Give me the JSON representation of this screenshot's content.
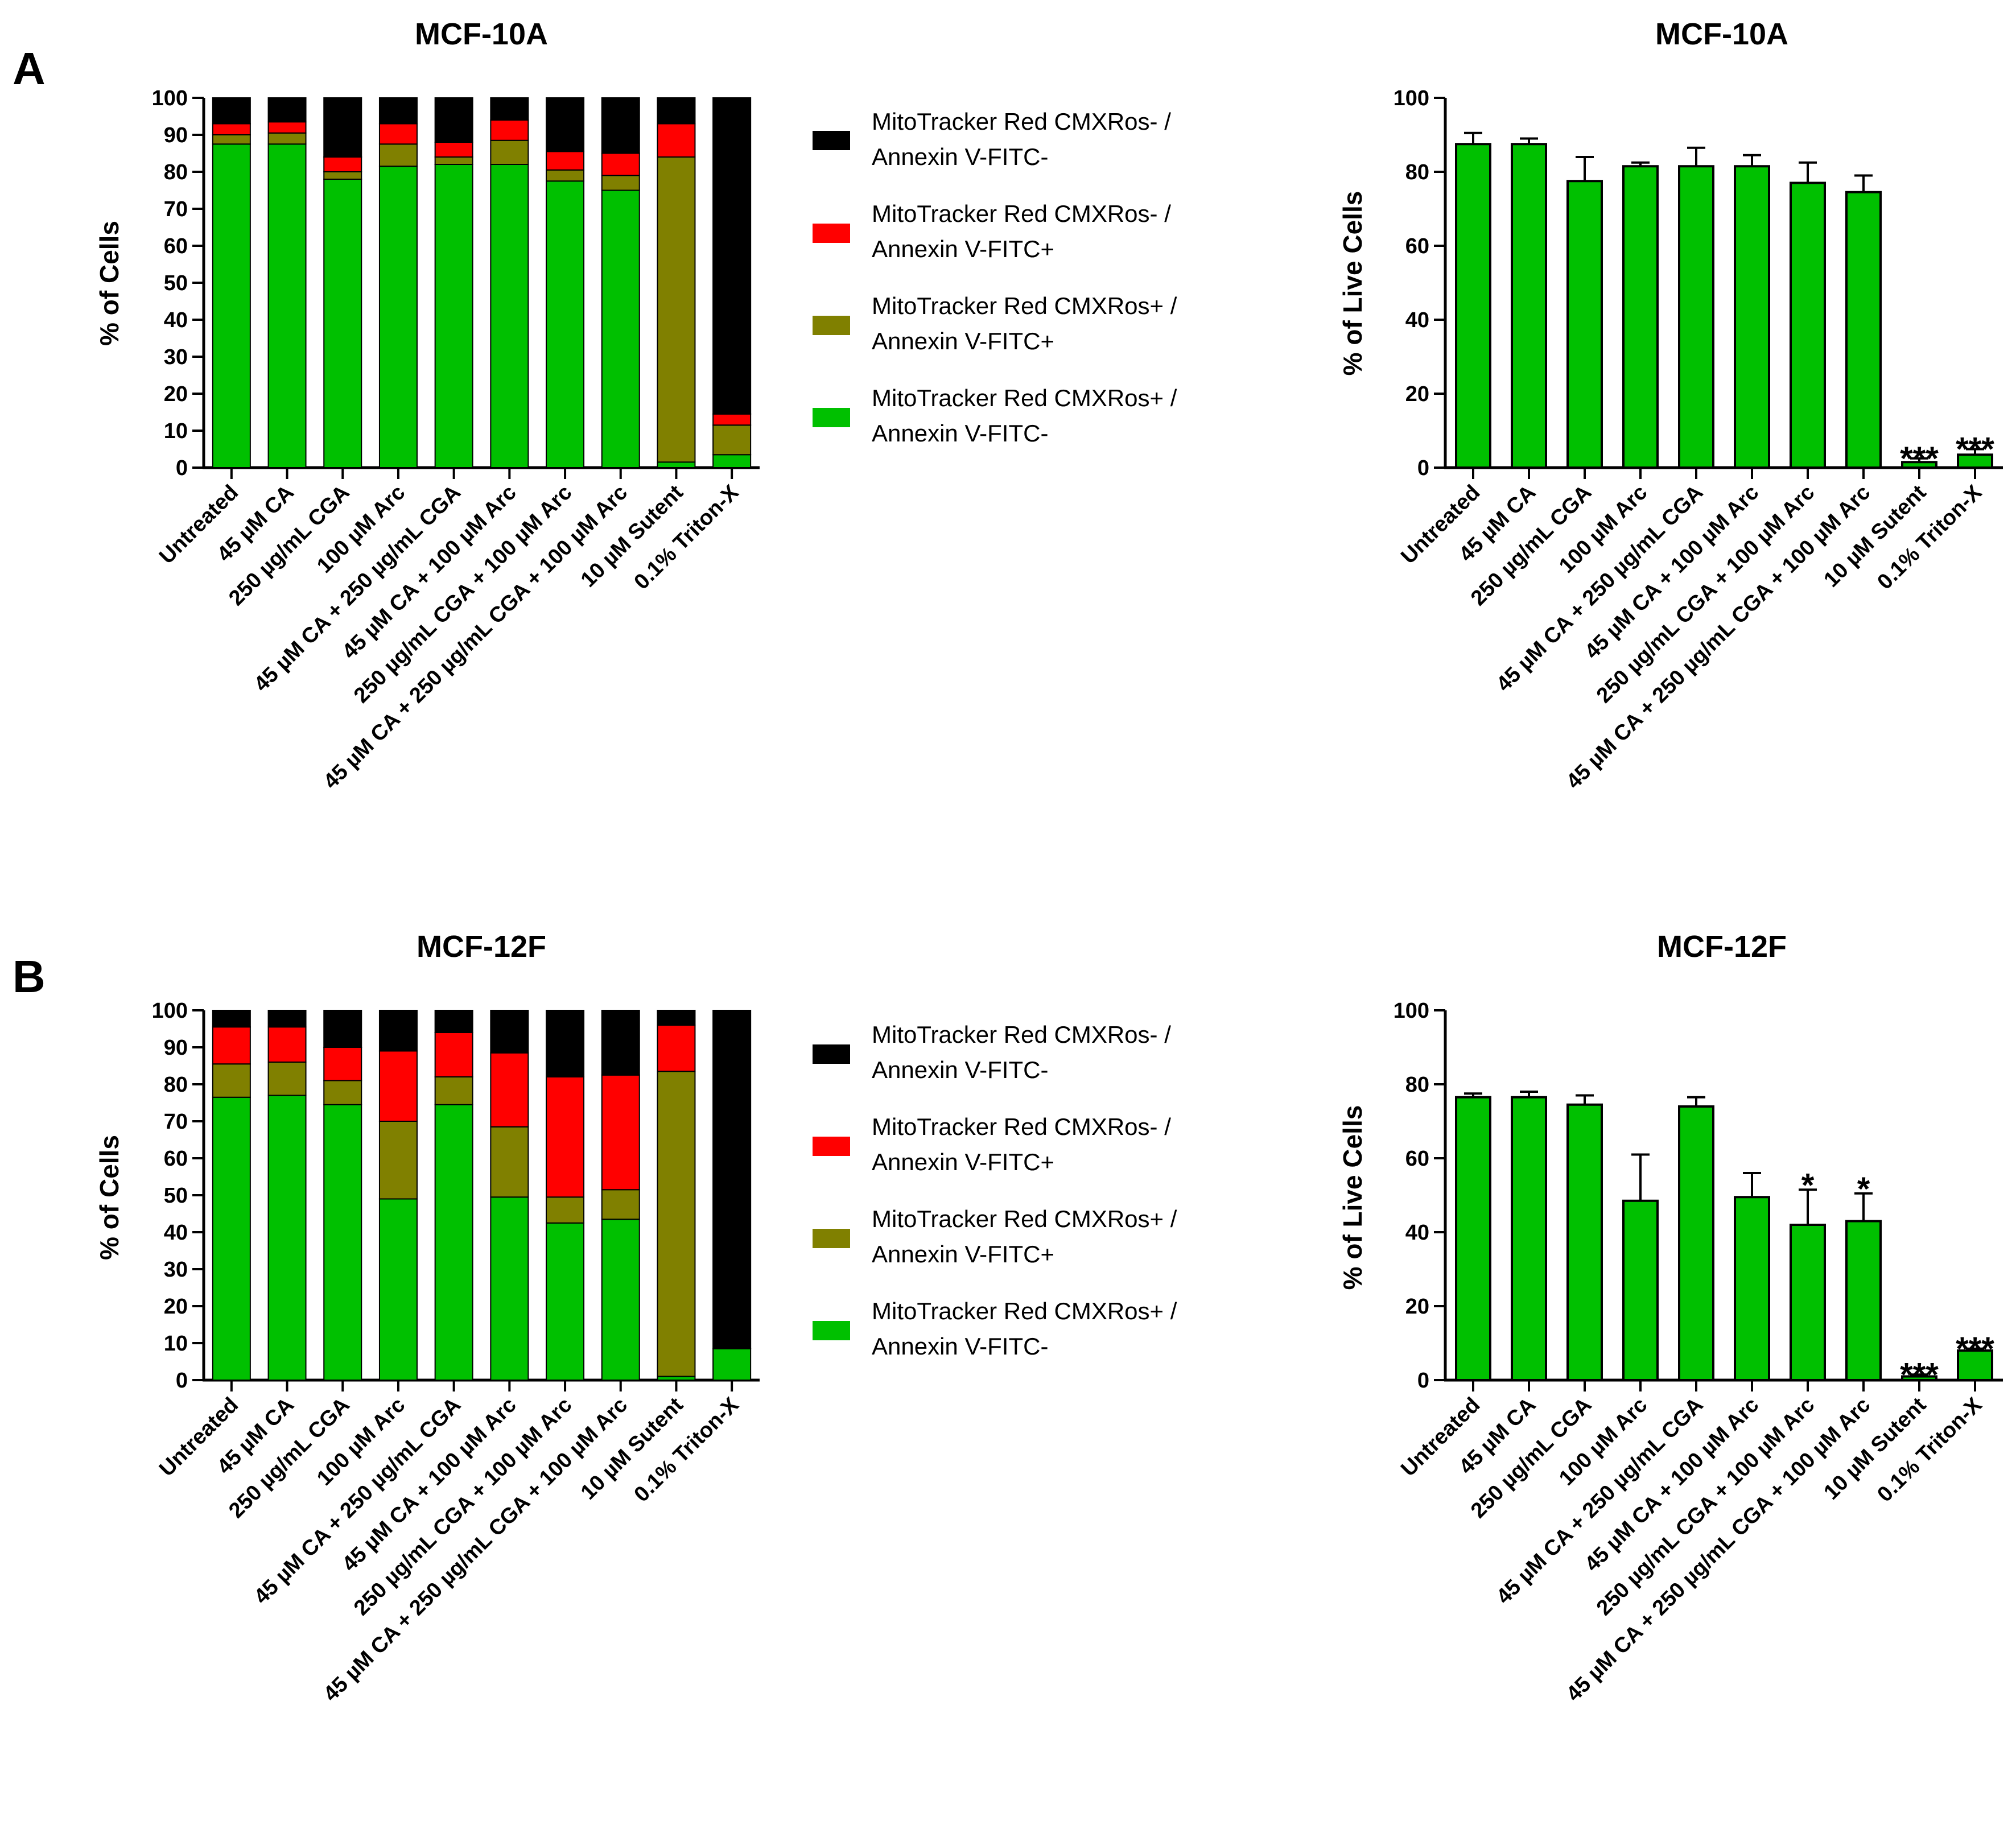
{
  "panel_labels": [
    "A",
    "B"
  ],
  "colors": {
    "live": "#00C000",
    "early_apoptotic": "#808000",
    "late": "#FF0000",
    "dead": "#000000"
  },
  "legend": [
    {
      "key": "dead",
      "line1": "MitoTracker Red CMXRos- /",
      "line2": "Annexin V-FITC-"
    },
    {
      "key": "late",
      "line1": "MitoTracker Red CMXRos- /",
      "line2": "Annexin V-FITC+"
    },
    {
      "key": "early_apoptotic",
      "line1": "MitoTracker Red CMXRos+ /",
      "line2": "Annexin V-FITC+"
    },
    {
      "key": "live",
      "line1": "MitoTracker Red CMXRos+ /",
      "line2": "Annexin V-FITC-"
    }
  ],
  "chart_data": [
    {
      "id": "A-stacked",
      "type": "bar",
      "stacked": true,
      "title": "MCF-10A",
      "ylabel": "% of Cells",
      "ylim": [
        0,
        100
      ],
      "yticks": [
        "0",
        "10",
        "20",
        "30",
        "40",
        "50",
        "60",
        "70",
        "80",
        "90",
        "100"
      ],
      "categories": [
        "Untreated",
        "45 µM CA",
        "250 µg/mL CGA",
        "100 µM Arc",
        "45 µM CA + 250 µg/mL CGA",
        "45 µM CA + 100 µM Arc",
        "250 µg/mL CGA + 100 µM Arc",
        "45 µM CA + 250 µg/mL CGA + 100 µM Arc",
        "10 µM Sutent",
        "0.1% Triton-X"
      ],
      "series": [
        {
          "key": "live",
          "name": "MitoTracker Red CMXRos+ / Annexin V-FITC-",
          "values": [
            87.5,
            87.5,
            78,
            81.5,
            82,
            82,
            77.5,
            75,
            1.5,
            3.5
          ]
        },
        {
          "key": "early_apoptotic",
          "name": "MitoTracker Red CMXRos+ / Annexin V-FITC+",
          "values": [
            2.5,
            3,
            2,
            6,
            2,
            6.5,
            3,
            4,
            82.5,
            8
          ]
        },
        {
          "key": "late",
          "name": "MitoTracker Red CMXRos- / Annexin V-FITC+",
          "values": [
            3,
            3,
            4,
            5.5,
            4,
            5.5,
            5,
            6,
            9,
            3
          ]
        },
        {
          "key": "dead",
          "name": "MitoTracker Red CMXRos- / Annexin V-FITC-",
          "values": [
            7,
            6.5,
            16,
            7,
            12,
            6,
            14.5,
            15,
            7,
            85.5
          ]
        }
      ]
    },
    {
      "id": "A-live",
      "type": "bar",
      "title": "MCF-10A",
      "ylabel": "% of Live Cells",
      "ylim": [
        0,
        100
      ],
      "yticks": [
        "0",
        "20",
        "40",
        "60",
        "80",
        "100"
      ],
      "categories": [
        "Untreated",
        "45 µM CA",
        "250 µg/mL CGA",
        "100 µM Arc",
        "45 µM CA + 250 µg/mL CGA",
        "45 µM CA + 100 µM Arc",
        "250 µg/mL CGA + 100 µM Arc",
        "45 µM CA + 250 µg/mL CGA + 100 µM Arc",
        "10 µM Sutent",
        "0.1% Triton-X"
      ],
      "values": [
        87.5,
        87.5,
        77.5,
        81.5,
        81.5,
        81.5,
        77,
        74.5,
        1.5,
        3.5
      ],
      "errors": [
        3,
        1.5,
        6.5,
        1,
        5,
        3,
        5.5,
        4.5,
        1,
        1.5
      ],
      "significance": [
        "",
        "",
        "",
        "",
        "",
        "",
        "",
        "",
        "***",
        "***"
      ]
    },
    {
      "id": "B-stacked",
      "type": "bar",
      "stacked": true,
      "title": "MCF-12F",
      "ylabel": "% of Cells",
      "ylim": [
        0,
        100
      ],
      "yticks": [
        "0",
        "10",
        "20",
        "30",
        "40",
        "50",
        "60",
        "70",
        "80",
        "90",
        "100"
      ],
      "categories": [
        "Untreated",
        "45 µM CA",
        "250 µg/mL CGA",
        "100 µM Arc",
        "45 µM CA + 250 µg/mL CGA",
        "45 µM CA + 100 µM Arc",
        "250 µg/mL CGA + 100 µM Arc",
        "45 µM CA + 250 µg/mL CGA + 100 µM Arc",
        "10 µM Sutent",
        "0.1% Triton-X"
      ],
      "series": [
        {
          "key": "live",
          "name": "MitoTracker Red CMXRos+ / Annexin V-FITC-",
          "values": [
            76.5,
            77,
            74.5,
            49,
            74.5,
            49.5,
            42.5,
            43.5,
            1,
            8.5
          ]
        },
        {
          "key": "early_apoptotic",
          "name": "MitoTracker Red CMXRos+ / Annexin V-FITC+",
          "values": [
            9,
            9,
            6.5,
            21,
            7.5,
            19,
            7,
            8,
            82.5,
            0
          ]
        },
        {
          "key": "late",
          "name": "MitoTracker Red CMXRos- / Annexin V-FITC+",
          "values": [
            10,
            9.5,
            9,
            19,
            12,
            20,
            32.5,
            31,
            12.5,
            0
          ]
        },
        {
          "key": "dead",
          "name": "MitoTracker Red CMXRos- / Annexin V-FITC-",
          "values": [
            4.5,
            4.5,
            10,
            11,
            6,
            11.5,
            18,
            17.5,
            4,
            91.5
          ]
        }
      ]
    },
    {
      "id": "B-live",
      "type": "bar",
      "title": "MCF-12F",
      "ylabel": "% of Live Cells",
      "ylim": [
        0,
        100
      ],
      "yticks": [
        "0",
        "20",
        "40",
        "60",
        "80",
        "100"
      ],
      "categories": [
        "Untreated",
        "45 µM CA",
        "250 µg/mL CGA",
        "100 µM Arc",
        "45 µM CA + 250 µg/mL CGA",
        "45 µM CA + 100 µM Arc",
        "250 µg/mL CGA + 100 µM Arc",
        "45 µM CA + 250 µg/mL CGA + 100 µM Arc",
        "10 µM Sutent",
        "0.1% Triton-X"
      ],
      "values": [
        76.5,
        76.5,
        74.5,
        48.5,
        74,
        49.5,
        42,
        43,
        1,
        8
      ],
      "errors": [
        1,
        1.5,
        2.5,
        12.5,
        2.5,
        6.5,
        9.5,
        7.5,
        0.5,
        0.5
      ],
      "significance": [
        "",
        "",
        "",
        "",
        "",
        "",
        "*",
        "*",
        "***",
        "***"
      ]
    }
  ]
}
